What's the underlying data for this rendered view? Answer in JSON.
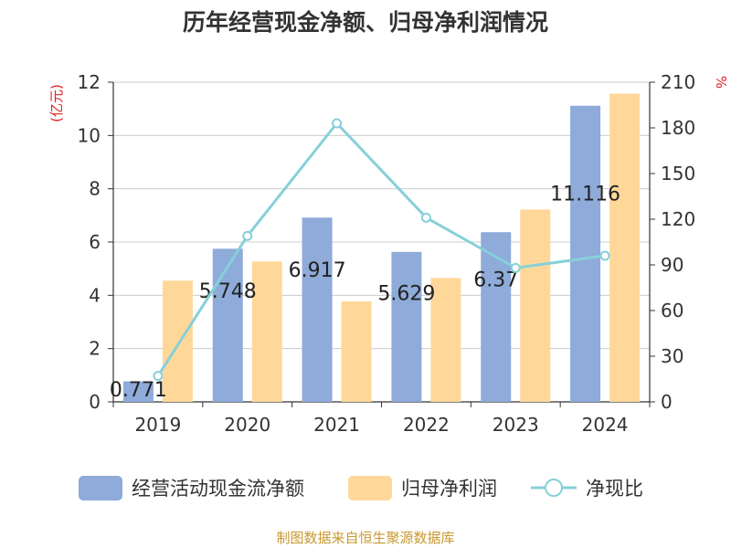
{
  "page": {
    "title": "历年经营现金净额、归母净利润情况",
    "footer": "制图数据来自恒生聚源数据库"
  },
  "chart_data": {
    "type": "bar",
    "categories": [
      "2019",
      "2020",
      "2021",
      "2022",
      "2023",
      "2024"
    ],
    "series": [
      {
        "name": "经营活动现金流净额",
        "type": "bar",
        "axis": "left",
        "color": "#8eabd9",
        "values": [
          0.771,
          5.748,
          6.917,
          5.629,
          6.37,
          11.116
        ],
        "labels": [
          "0.771",
          "5.748",
          "6.917",
          "5.629",
          "6.37",
          "11.116"
        ]
      },
      {
        "name": "归母净利润",
        "type": "bar",
        "axis": "left",
        "color": "#ffd899",
        "values": [
          4.55,
          5.27,
          3.77,
          4.65,
          7.22,
          11.57
        ]
      },
      {
        "name": "净现比",
        "type": "line",
        "axis": "right",
        "color": "#86d0d8",
        "values": [
          17,
          109,
          183,
          121,
          88,
          96
        ]
      }
    ],
    "y_left": {
      "label": "(亿元)",
      "ylim": [
        0,
        12
      ],
      "ticks": [
        "0",
        "2",
        "4",
        "6",
        "8",
        "10",
        "12"
      ]
    },
    "y_right": {
      "label": "%",
      "ylim": [
        0,
        210
      ],
      "ticks": [
        "0",
        "30",
        "60",
        "90",
        "120",
        "150",
        "180",
        "210"
      ]
    },
    "grid": true,
    "legend_position": "bottom"
  }
}
